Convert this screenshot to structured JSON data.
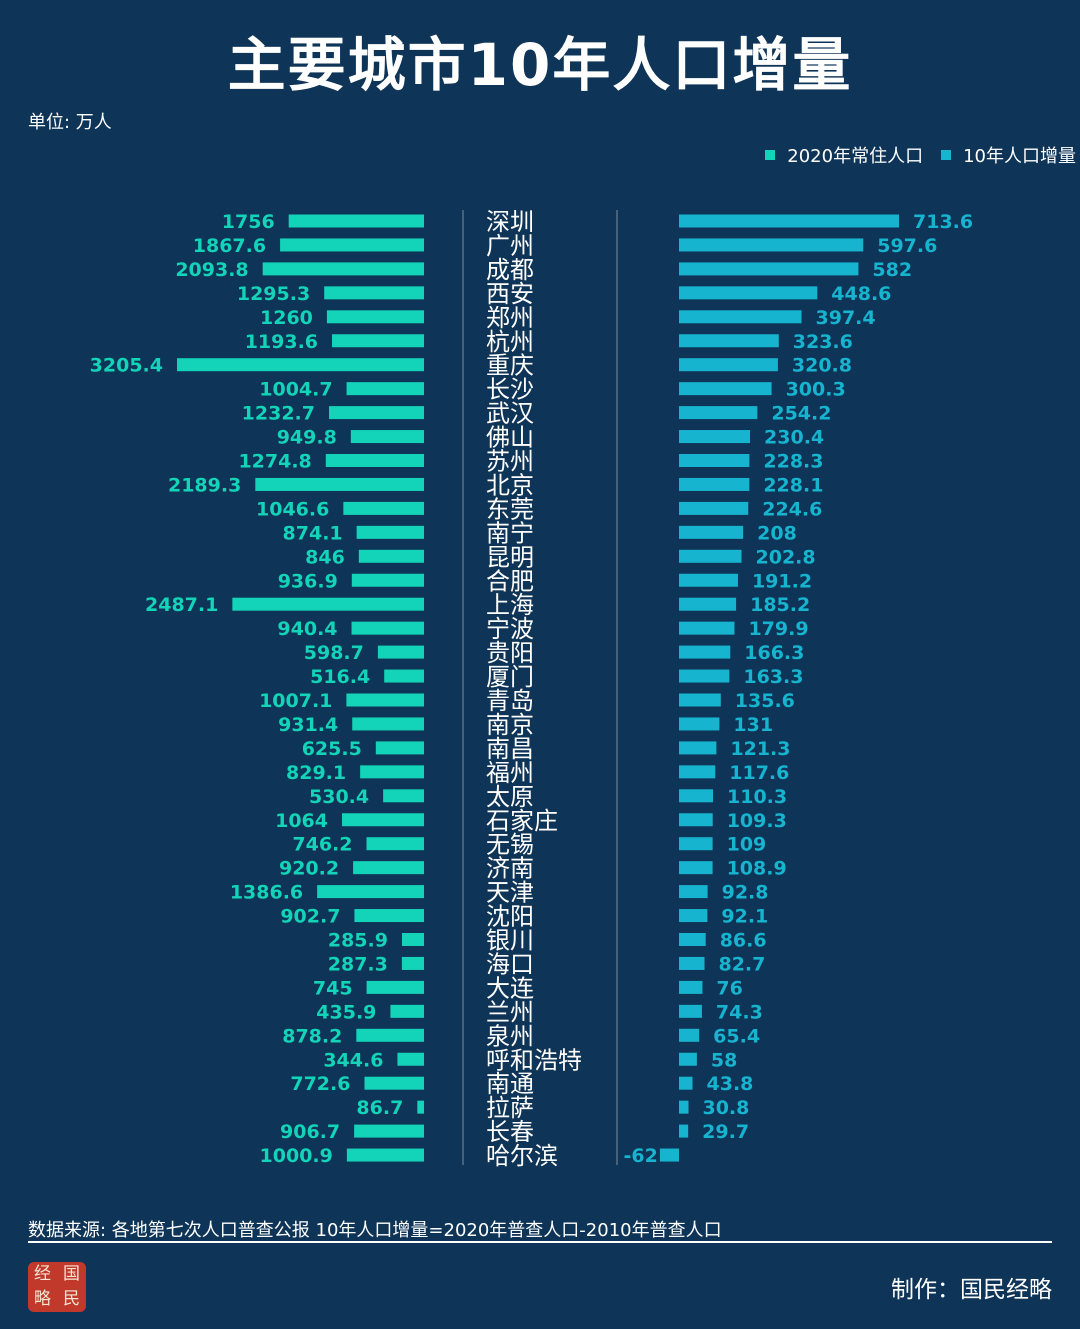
{
  "header": {
    "title": "主要城市10年人口增量",
    "unit": "单位: 万人"
  },
  "legend": [
    {
      "label": "2020年常住人口",
      "color": "#13d3b8"
    },
    {
      "label": "10年人口增量",
      "color": "#17b4cf"
    }
  ],
  "colors": {
    "background": "#0e3457",
    "population_bar": "#13d3b8",
    "increase_bar": "#17b4cf",
    "axis_line": "#6b7f94"
  },
  "footer": {
    "source": "数据来源: 各地第七次人口普查公报  10年人口增量=2020年普查人口-2010年普查人口",
    "maker": "制作：国民经略",
    "logo_chars": [
      "经",
      "国",
      "略",
      "民"
    ]
  },
  "chart_data": {
    "type": "bar",
    "orientation": "horizontal",
    "layout": "butterfly",
    "categories": [
      "深圳",
      "广州",
      "成都",
      "西安",
      "郑州",
      "杭州",
      "重庆",
      "长沙",
      "武汉",
      "佛山",
      "苏州",
      "北京",
      "东莞",
      "南宁",
      "昆明",
      "合肥",
      "上海",
      "宁波",
      "贵阳",
      "厦门",
      "青岛",
      "南京",
      "南昌",
      "福州",
      "太原",
      "石家庄",
      "无锡",
      "济南",
      "天津",
      "沈阳",
      "银川",
      "海口",
      "大连",
      "兰州",
      "泉州",
      "呼和浩特",
      "南通",
      "拉萨",
      "长春",
      "哈尔滨"
    ],
    "series": [
      {
        "name": "2020年常住人口",
        "side": "left",
        "values": [
          1756,
          1867.6,
          2093.8,
          1295.3,
          1260,
          1193.6,
          3205.4,
          1004.7,
          1232.7,
          949.8,
          1274.8,
          2189.3,
          1046.6,
          874.1,
          846,
          936.9,
          2487.1,
          940.4,
          598.7,
          516.4,
          1007.1,
          931.4,
          625.5,
          829.1,
          530.4,
          1064,
          746.2,
          920.2,
          1386.6,
          902.7,
          285.9,
          287.3,
          745,
          435.9,
          878.2,
          344.6,
          772.6,
          86.7,
          906.7,
          1000.9
        ],
        "labels": [
          "1756",
          "1867.6",
          "2093.8",
          "1295.3",
          "1260",
          "1193.6",
          "3205.4",
          "1004.7",
          "1232.7",
          "949.8",
          "1274.8",
          "2189.3",
          "1046.6",
          "874.1",
          "846",
          "936.9",
          "2487.1",
          "940.4",
          "598.7",
          "516.4",
          "1007.1",
          "931.4",
          "625.5",
          "829.1",
          "530.4",
          "1064",
          "746.2",
          "920.2",
          "1386.6",
          "902.7",
          "285.9",
          "287.3",
          "745",
          "435.9",
          "878.2",
          "344.6",
          "772.6",
          "86.7",
          "906.7",
          "1000.9"
        ]
      },
      {
        "name": "10年人口增量",
        "side": "right",
        "values": [
          713.6,
          597.6,
          582,
          448.6,
          397.4,
          323.6,
          320.8,
          300.3,
          254.2,
          230.4,
          228.3,
          228.1,
          224.6,
          208,
          202.8,
          191.2,
          185.2,
          179.9,
          166.3,
          163.3,
          135.6,
          131,
          121.3,
          117.6,
          110.3,
          109.3,
          109,
          108.9,
          92.8,
          92.1,
          86.6,
          82.7,
          76,
          74.3,
          65.4,
          58,
          43.8,
          30.8,
          29.7,
          -62
        ],
        "labels": [
          "713.6",
          "597.6",
          "582",
          "448.6",
          "397.4",
          "323.6",
          "320.8",
          "300.3",
          "254.2",
          "230.4",
          "228.3",
          "228.1",
          "224.6",
          "208",
          "202.8",
          "191.2",
          "185.2",
          "179.9",
          "166.3",
          "163.3",
          "135.6",
          "131",
          "121.3",
          "117.6",
          "110.3",
          "109.3",
          "109",
          "108.9",
          "92.8",
          "92.1",
          "86.6",
          "82.7",
          "76",
          "74.3",
          "65.4",
          "58",
          "43.8",
          "30.8",
          "29.7",
          "-62"
        ]
      }
    ]
  }
}
